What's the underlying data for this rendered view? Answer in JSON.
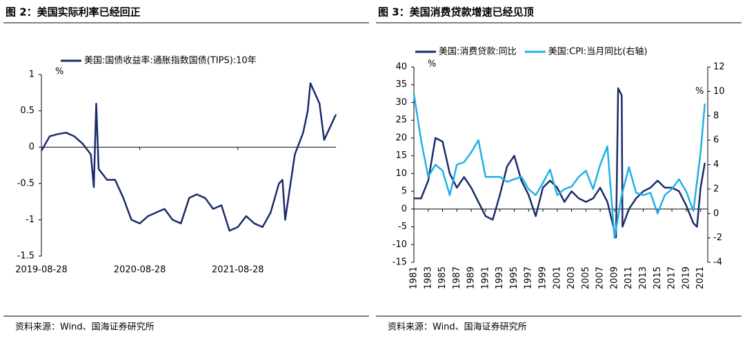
{
  "chart_data": [
    {
      "type": "line",
      "title": "图 2：美国实际利率已经回正",
      "source": "资料来源：Wind、国海证券研究所",
      "y_unit": "%",
      "xlim": [
        "2019-08-28",
        "2022-08-28"
      ],
      "xticks": [
        "2019-08-28",
        "2020-08-28",
        "2021-08-28"
      ],
      "ylim": [
        -1.5,
        1
      ],
      "yticks": [
        -1.5,
        -1,
        -0.5,
        0,
        0.5,
        1
      ],
      "series": [
        {
          "name": "美国:国债收益率:通胀指数国债(TIPS):10年",
          "color": "#1b2a6b",
          "x": [
            "2019-08-28",
            "2019-09-28",
            "2019-10-28",
            "2019-11-28",
            "2019-12-28",
            "2020-01-28",
            "2020-02-28",
            "2020-03-10",
            "2020-03-19",
            "2020-03-28",
            "2020-04-28",
            "2020-05-28",
            "2020-06-28",
            "2020-07-28",
            "2020-08-28",
            "2020-09-28",
            "2020-10-28",
            "2020-11-28",
            "2020-12-28",
            "2021-01-28",
            "2021-02-28",
            "2021-03-28",
            "2021-04-28",
            "2021-05-28",
            "2021-06-28",
            "2021-07-28",
            "2021-08-28",
            "2021-09-28",
            "2021-10-28",
            "2021-11-28",
            "2021-12-28",
            "2022-01-28",
            "2022-02-10",
            "2022-02-20",
            "2022-03-28",
            "2022-04-28",
            "2022-05-15",
            "2022-05-25",
            "2022-06-28",
            "2022-07-15",
            "2022-08-28"
          ],
          "values": [
            -0.05,
            0.15,
            0.18,
            0.2,
            0.15,
            0.05,
            -0.1,
            -0.55,
            0.6,
            -0.3,
            -0.45,
            -0.45,
            -0.7,
            -1.0,
            -1.05,
            -0.95,
            -0.9,
            -0.85,
            -1.0,
            -1.05,
            -0.7,
            -0.65,
            -0.7,
            -0.85,
            -0.8,
            -1.15,
            -1.1,
            -0.95,
            -1.05,
            -1.1,
            -0.9,
            -0.5,
            -0.45,
            -1.0,
            -0.1,
            0.2,
            0.5,
            0.88,
            0.6,
            0.1,
            0.45
          ]
        }
      ]
    },
    {
      "type": "line",
      "title": "图 3：美国消费贷款增速已经见顶",
      "source": "资料来源：Wind、国海证券研究所",
      "y_unit": "%",
      "y2_unit": "%",
      "xlim": [
        1981,
        2022
      ],
      "xticks": [
        1981,
        1983,
        1985,
        1987,
        1989,
        1991,
        1993,
        1995,
        1997,
        1999,
        2001,
        2003,
        2005,
        2007,
        2009,
        2011,
        2013,
        2015,
        2017,
        2019,
        2021
      ],
      "ylim": [
        -15,
        40
      ],
      "yticks": [
        -15,
        -10,
        -5,
        0,
        5,
        10,
        15,
        20,
        25,
        30,
        35,
        40
      ],
      "y2lim": [
        -4,
        12
      ],
      "y2ticks": [
        -4,
        -2,
        0,
        2,
        4,
        6,
        8,
        10,
        12
      ],
      "series": [
        {
          "name": "美国:消费贷款:同比",
          "color": "#1b2a6b",
          "x": [
            1981,
            1982,
            1983,
            1984,
            1985,
            1986,
            1987,
            1988,
            1989,
            1990,
            1991,
            1992,
            1993,
            1994,
            1995,
            1996,
            1997,
            1998,
            1999,
            2000,
            2001,
            2002,
            2003,
            2004,
            2005,
            2006,
            2007,
            2008,
            2009.2,
            2009.5,
            2010,
            2010.1,
            2011,
            2012,
            2013,
            2014,
            2015,
            2016,
            2017,
            2018,
            2019,
            2020,
            2020.5,
            2021,
            2021.6
          ],
          "values": [
            3,
            3,
            8,
            20,
            19,
            10,
            6,
            9,
            6,
            2,
            -2,
            -3,
            4,
            12,
            15,
            8,
            4,
            -2,
            6,
            8,
            6,
            2,
            5,
            3,
            2,
            3,
            6,
            2,
            -8,
            34,
            32,
            -5,
            0,
            3,
            5,
            6,
            8,
            6,
            6,
            5,
            1,
            -4,
            -5,
            6,
            13
          ]
        },
        {
          "name": "美国:CPI:当月同比(右轴)",
          "color": "#1fb0e6",
          "axis": "y2",
          "x": [
            1981,
            1982,
            1983,
            1984,
            1985,
            1986,
            1987,
            1988,
            1989,
            1990,
            1991,
            1992,
            1993,
            1994,
            1995,
            1996,
            1997,
            1998,
            1999,
            2000,
            2001,
            2002,
            2003,
            2004,
            2005,
            2006,
            2007,
            2008,
            2009,
            2010,
            2011,
            2012,
            2013,
            2014,
            2015,
            2016,
            2017,
            2018,
            2019,
            2020,
            2021,
            2021.6
          ],
          "values": [
            9.8,
            6,
            3,
            4,
            3.5,
            1.5,
            4,
            4.2,
            5,
            6,
            3,
            3,
            3,
            2.6,
            2.8,
            3,
            2,
            1.5,
            2.5,
            3.6,
            1.5,
            2,
            2.2,
            3,
            3.5,
            2,
            4,
            5.5,
            -2,
            1.5,
            3.8,
            1.7,
            1.5,
            1.7,
            0,
            1.5,
            2,
            2.8,
            1.8,
            0.2,
            5,
            9
          ]
        }
      ]
    }
  ]
}
